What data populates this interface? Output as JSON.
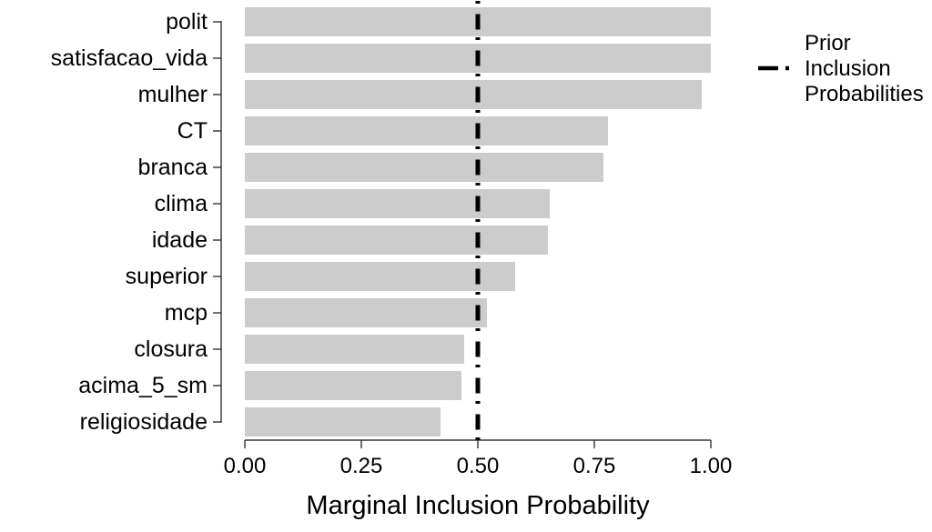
{
  "chart_data": {
    "type": "bar",
    "orientation": "horizontal",
    "title": "",
    "xlabel": "Marginal Inclusion Probability",
    "ylabel": "",
    "categories": [
      "polit",
      "satisfacao_vida",
      "mulher",
      "CT",
      "branca",
      "clima",
      "idade",
      "superior",
      "mcp",
      "closura",
      "acima_5_sm",
      "religiosidade"
    ],
    "values": [
      1.0,
      1.0,
      0.98,
      0.78,
      0.77,
      0.655,
      0.65,
      0.58,
      0.52,
      0.47,
      0.465,
      0.42
    ],
    "xlim": [
      0,
      1
    ],
    "x_tick_labels": [
      "0.00",
      "0.25",
      "0.50",
      "0.75",
      "1.00"
    ],
    "x_tick_values": [
      0,
      0.25,
      0.5,
      0.75,
      1
    ],
    "grid": false,
    "reference_line": {
      "x": 0.5,
      "style": "dashed",
      "color": "#000000"
    },
    "legend": {
      "position": "right",
      "label_lines": [
        "Prior",
        "Inclusion",
        "Probabilities"
      ],
      "key_style": "dashed-line"
    },
    "colors": {
      "bar_fill": "#cccccc",
      "axis_line": "#333333",
      "reference_line": "#000000",
      "text": "#000000",
      "background": "#ffffff"
    }
  }
}
